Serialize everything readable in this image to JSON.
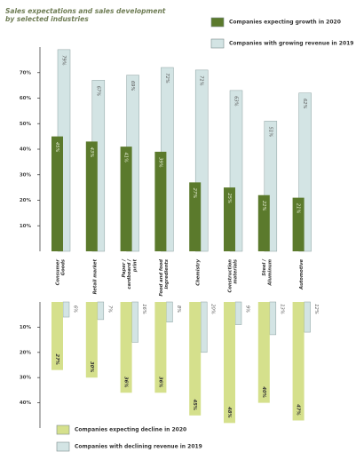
{
  "chart_data": [
    {
      "type": "bar",
      "title": [
        "Sales expectations and sales development",
        "by selected industries"
      ],
      "categories": [
        [
          "Consumer",
          "Goods"
        ],
        [
          "Retail market"
        ],
        [
          "Paper /",
          "cardboard /",
          "print"
        ],
        [
          "Food and food",
          "ingredients"
        ],
        [
          "Chemistry"
        ],
        [
          "Construction",
          "materials"
        ],
        [
          "Steel /",
          "Aluminum"
        ],
        [
          "Automotive"
        ]
      ],
      "series": [
        {
          "name": "Companies expecting growth in 2020",
          "color": "#5b7a2c",
          "values": [
            45,
            43,
            41,
            39,
            27,
            25,
            22,
            21
          ],
          "value_labels": [
            "45%",
            "43%",
            "41%",
            "39%",
            "27%",
            "25%",
            "22%",
            "21%"
          ]
        },
        {
          "name": "Companies with growing revenue in  2019",
          "color": "#d3e4e4",
          "values": [
            79,
            67,
            69,
            72,
            71,
            63,
            51,
            62
          ],
          "value_labels": [
            "79%",
            "67%",
            "69%",
            "72%",
            "71%",
            "63%",
            "51%",
            "62%"
          ]
        }
      ],
      "ylim": [
        0,
        80
      ],
      "yticks": [
        {
          "value": 10,
          "label": "10%"
        },
        {
          "value": 20,
          "label": "20%"
        },
        {
          "value": 30,
          "label": "30%"
        },
        {
          "value": 40,
          "label": "40%"
        },
        {
          "value": 50,
          "label": "50%"
        },
        {
          "value": 60,
          "label": "60%"
        },
        {
          "value": 70,
          "label": "70%"
        }
      ]
    },
    {
      "type": "bar",
      "y_inverted": true,
      "series": [
        {
          "name": "Companies expecting decline in 2020",
          "color": "#d5e08c",
          "values": [
            27,
            30,
            36,
            36,
            45,
            48,
            40,
            47
          ],
          "value_labels": [
            "27%",
            "30%",
            "36%",
            "36%",
            "45%",
            "48%",
            "40%",
            "47%"
          ]
        },
        {
          "name": "Companies with declining revenue in  2019",
          "color": "#d3e4e4",
          "values": [
            6,
            7,
            16,
            8,
            20,
            9,
            13,
            12
          ],
          "value_labels": [
            "6%",
            "7%",
            "16%",
            "8%",
            "20%",
            "9%",
            "13%",
            "12%"
          ]
        }
      ],
      "ylim": [
        0,
        50
      ],
      "yticks": [
        {
          "value": 10,
          "label": "10%"
        },
        {
          "value": 20,
          "label": "20%"
        },
        {
          "value": 30,
          "label": "30%"
        },
        {
          "value": 40,
          "label": "40%"
        }
      ]
    }
  ]
}
